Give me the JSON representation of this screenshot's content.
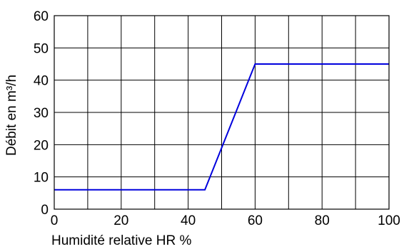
{
  "chart_data": {
    "type": "line",
    "title": "",
    "xlabel": "Humidité relative HR %",
    "ylabel": "Débit en m³/h",
    "xlim": [
      0,
      100
    ],
    "ylim": [
      0,
      60
    ],
    "x_ticks": [
      0,
      20,
      40,
      60,
      80,
      100
    ],
    "y_ticks": [
      0,
      10,
      20,
      30,
      40,
      50,
      60
    ],
    "grid": true,
    "grid_x_step": 10,
    "grid_y_step": 10,
    "series": [
      {
        "color": "#0000dd",
        "points": [
          [
            0,
            6
          ],
          [
            45,
            6
          ],
          [
            60,
            45
          ],
          [
            100,
            45
          ]
        ]
      }
    ]
  }
}
